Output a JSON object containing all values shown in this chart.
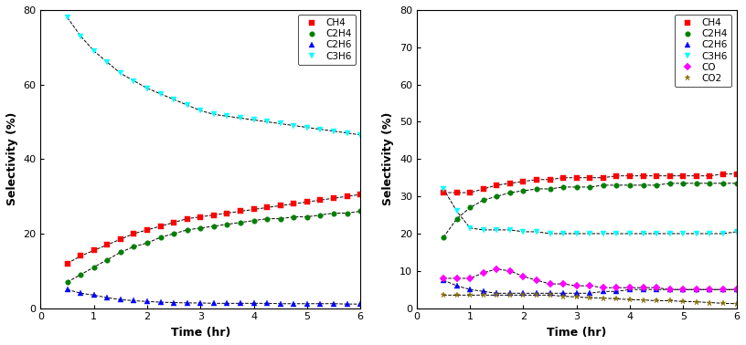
{
  "left": {
    "xlabel": "Time (hr)",
    "ylabel": "Selectivity (%)",
    "ylim": [
      0,
      80
    ],
    "xlim": [
      0,
      6
    ],
    "yticks": [
      0,
      20,
      40,
      60,
      80
    ],
    "xticks": [
      0,
      1,
      2,
      3,
      4,
      5,
      6
    ],
    "series": {
      "CH4": {
        "x": [
          0.5,
          0.75,
          1.0,
          1.25,
          1.5,
          1.75,
          2.0,
          2.25,
          2.5,
          2.75,
          3.0,
          3.25,
          3.5,
          3.75,
          4.0,
          4.25,
          4.5,
          4.75,
          5.0,
          5.25,
          5.5,
          5.75,
          6.0
        ],
        "y": [
          12,
          14,
          15.5,
          17,
          18.5,
          20,
          21,
          22,
          23,
          24,
          24.5,
          25,
          25.5,
          26,
          26.5,
          27,
          27.5,
          28,
          28.5,
          29,
          29.5,
          30,
          30.5
        ],
        "color": "red",
        "marker": "s",
        "markersize": 4
      },
      "C2H4": {
        "x": [
          0.5,
          0.75,
          1.0,
          1.25,
          1.5,
          1.75,
          2.0,
          2.25,
          2.5,
          2.75,
          3.0,
          3.25,
          3.5,
          3.75,
          4.0,
          4.25,
          4.5,
          4.75,
          5.0,
          5.25,
          5.5,
          5.75,
          6.0
        ],
        "y": [
          7,
          9,
          11,
          13,
          15,
          16.5,
          17.5,
          19,
          20,
          21,
          21.5,
          22,
          22.5,
          23,
          23.5,
          24,
          24,
          24.5,
          24.5,
          25,
          25.5,
          25.5,
          26
        ],
        "color": "green",
        "marker": "o",
        "markersize": 4
      },
      "C2H6": {
        "x": [
          0.5,
          0.75,
          1.0,
          1.25,
          1.5,
          1.75,
          2.0,
          2.25,
          2.5,
          2.75,
          3.0,
          3.25,
          3.5,
          3.75,
          4.0,
          4.25,
          4.5,
          4.75,
          5.0,
          5.25,
          5.5,
          5.75,
          6.0
        ],
        "y": [
          5,
          4,
          3.5,
          2.8,
          2.3,
          2.0,
          1.8,
          1.6,
          1.5,
          1.4,
          1.4,
          1.3,
          1.3,
          1.3,
          1.3,
          1.3,
          1.2,
          1.2,
          1.2,
          1.2,
          1.2,
          1.1,
          1.1
        ],
        "color": "blue",
        "marker": "^",
        "markersize": 4
      },
      "C3H6": {
        "x": [
          0.5,
          0.75,
          1.0,
          1.25,
          1.5,
          1.75,
          2.0,
          2.25,
          2.5,
          2.75,
          3.0,
          3.25,
          3.5,
          3.75,
          4.0,
          4.25,
          4.5,
          4.75,
          5.0,
          5.25,
          5.5,
          5.75,
          6.0
        ],
        "y": [
          78,
          73,
          69,
          66,
          63,
          61,
          59,
          57.5,
          56,
          54.5,
          53,
          52,
          51.5,
          51,
          50.5,
          50,
          49.5,
          49,
          48.5,
          48,
          47.5,
          47,
          46.5
        ],
        "color": "cyan",
        "marker": "v",
        "markersize": 4
      }
    }
  },
  "right": {
    "xlabel": "Time (hr)",
    "ylabel": "Selectivity (%)",
    "ylim": [
      0,
      80
    ],
    "xlim": [
      0,
      6
    ],
    "yticks": [
      0,
      10,
      20,
      30,
      40,
      50,
      60,
      70,
      80
    ],
    "xticks": [
      0,
      1,
      2,
      3,
      4,
      5,
      6
    ],
    "series": {
      "CH4": {
        "x": [
          0.5,
          0.75,
          1.0,
          1.25,
          1.5,
          1.75,
          2.0,
          2.25,
          2.5,
          2.75,
          3.0,
          3.25,
          3.5,
          3.75,
          4.0,
          4.25,
          4.5,
          4.75,
          5.0,
          5.25,
          5.5,
          5.75,
          6.0
        ],
        "y": [
          31,
          31,
          31,
          32,
          33,
          33.5,
          34,
          34.5,
          34.5,
          35,
          35,
          35,
          35,
          35.5,
          35.5,
          35.5,
          35.5,
          35.5,
          35.5,
          35.5,
          35.5,
          36,
          36
        ],
        "color": "red",
        "marker": "s",
        "markersize": 4
      },
      "C2H4": {
        "x": [
          0.5,
          0.75,
          1.0,
          1.25,
          1.5,
          1.75,
          2.0,
          2.25,
          2.5,
          2.75,
          3.0,
          3.25,
          3.5,
          3.75,
          4.0,
          4.25,
          4.5,
          4.75,
          5.0,
          5.25,
          5.5,
          5.75,
          6.0
        ],
        "y": [
          19,
          24,
          27,
          29,
          30,
          31,
          31.5,
          32,
          32,
          32.5,
          32.5,
          32.5,
          33,
          33,
          33,
          33,
          33,
          33.5,
          33.5,
          33.5,
          33.5,
          33.5,
          33.5
        ],
        "color": "green",
        "marker": "o",
        "markersize": 4
      },
      "C2H6": {
        "x": [
          0.5,
          0.75,
          1.0,
          1.25,
          1.5,
          1.75,
          2.0,
          2.25,
          2.5,
          2.75,
          3.0,
          3.25,
          3.5,
          3.75,
          4.0,
          4.25,
          4.5,
          4.75,
          5.0,
          5.25,
          5.5,
          5.75,
          6.0
        ],
        "y": [
          7.5,
          6,
          5,
          4.5,
          4,
          4,
          4,
          4,
          4,
          4,
          4,
          4,
          4.5,
          4.5,
          5,
          5,
          5,
          5,
          5,
          5,
          5,
          5,
          5
        ],
        "color": "blue",
        "marker": "^",
        "markersize": 4
      },
      "C3H6": {
        "x": [
          0.5,
          0.75,
          1.0,
          1.25,
          1.5,
          1.75,
          2.0,
          2.25,
          2.5,
          2.75,
          3.0,
          3.25,
          3.5,
          3.75,
          4.0,
          4.25,
          4.5,
          4.75,
          5.0,
          5.25,
          5.5,
          5.75,
          6.0
        ],
        "y": [
          32,
          26,
          21.5,
          21,
          21,
          21,
          20.5,
          20.5,
          20,
          20,
          20,
          20,
          20,
          20,
          20,
          20,
          20,
          20,
          20,
          20,
          20,
          20,
          20.5
        ],
        "color": "cyan",
        "marker": "v",
        "markersize": 4
      },
      "CO": {
        "x": [
          0.5,
          0.75,
          1.0,
          1.25,
          1.5,
          1.75,
          2.0,
          2.25,
          2.5,
          2.75,
          3.0,
          3.25,
          3.5,
          3.75,
          4.0,
          4.25,
          4.5,
          4.75,
          5.0,
          5.25,
          5.5,
          5.75,
          6.0
        ],
        "y": [
          8,
          8,
          8,
          9.5,
          10.5,
          10,
          8.5,
          7.5,
          6.5,
          6.5,
          6,
          6,
          5.5,
          5.5,
          5.5,
          5.5,
          5.5,
          5,
          5,
          5,
          5,
          5,
          5
        ],
        "color": "magenta",
        "marker": "D",
        "markersize": 4
      },
      "CO2": {
        "x": [
          0.5,
          0.75,
          1.0,
          1.25,
          1.5,
          1.75,
          2.0,
          2.25,
          2.5,
          2.75,
          3.0,
          3.25,
          3.5,
          3.75,
          4.0,
          4.25,
          4.5,
          4.75,
          5.0,
          5.25,
          5.5,
          5.75,
          6.0
        ],
        "y": [
          3.5,
          3.5,
          3.5,
          3.5,
          3.5,
          3.5,
          3.5,
          3.5,
          3.5,
          3.2,
          3.0,
          2.8,
          2.7,
          2.5,
          2.3,
          2.2,
          2.0,
          2.0,
          1.8,
          1.7,
          1.5,
          1.3,
          1.2
        ],
        "color": "#8B7000",
        "marker": "*",
        "markersize": 5
      }
    }
  },
  "line_color": "black",
  "line_style": "--",
  "line_width": 0.7,
  "legend_fontsize": 7.5,
  "axis_label_fontsize": 9,
  "tick_fontsize": 8,
  "background_color": "white"
}
